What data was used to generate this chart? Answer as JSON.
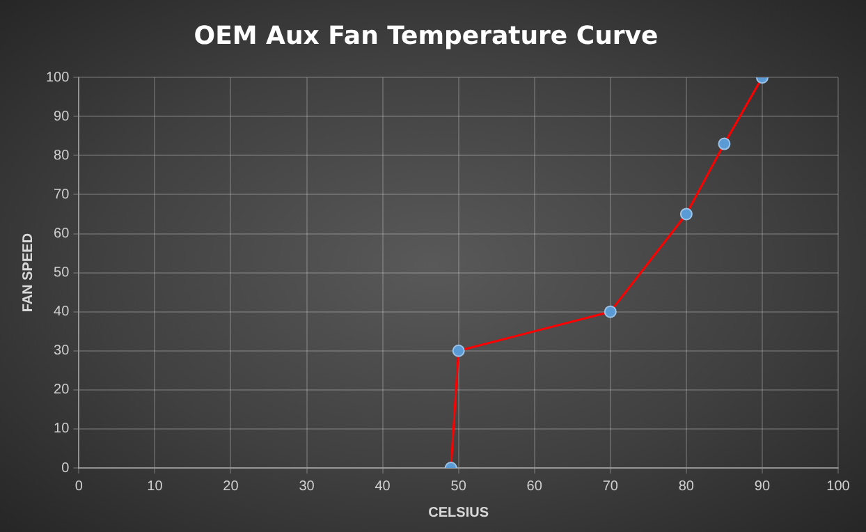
{
  "chart_data": {
    "type": "line",
    "title": "OEM Aux Fan Temperature Curve",
    "xlabel": "CELSIUS",
    "ylabel": "FAN SPEED",
    "x": [
      49,
      50,
      70,
      80,
      85,
      90
    ],
    "series": [
      {
        "color": "#ff0000",
        "values": [
          0,
          30,
          40,
          65,
          83,
          100
        ]
      }
    ],
    "marker": "circle",
    "line_style": "solid",
    "xlim": [
      0,
      100
    ],
    "xticks": [
      0,
      10,
      20,
      30,
      40,
      50,
      60,
      70,
      80,
      90,
      100
    ],
    "ylim": [
      0,
      100
    ],
    "yticks": [
      0,
      10,
      20,
      30,
      40,
      50,
      60,
      70,
      80,
      90,
      100
    ],
    "grid": true,
    "legend": false
  }
}
